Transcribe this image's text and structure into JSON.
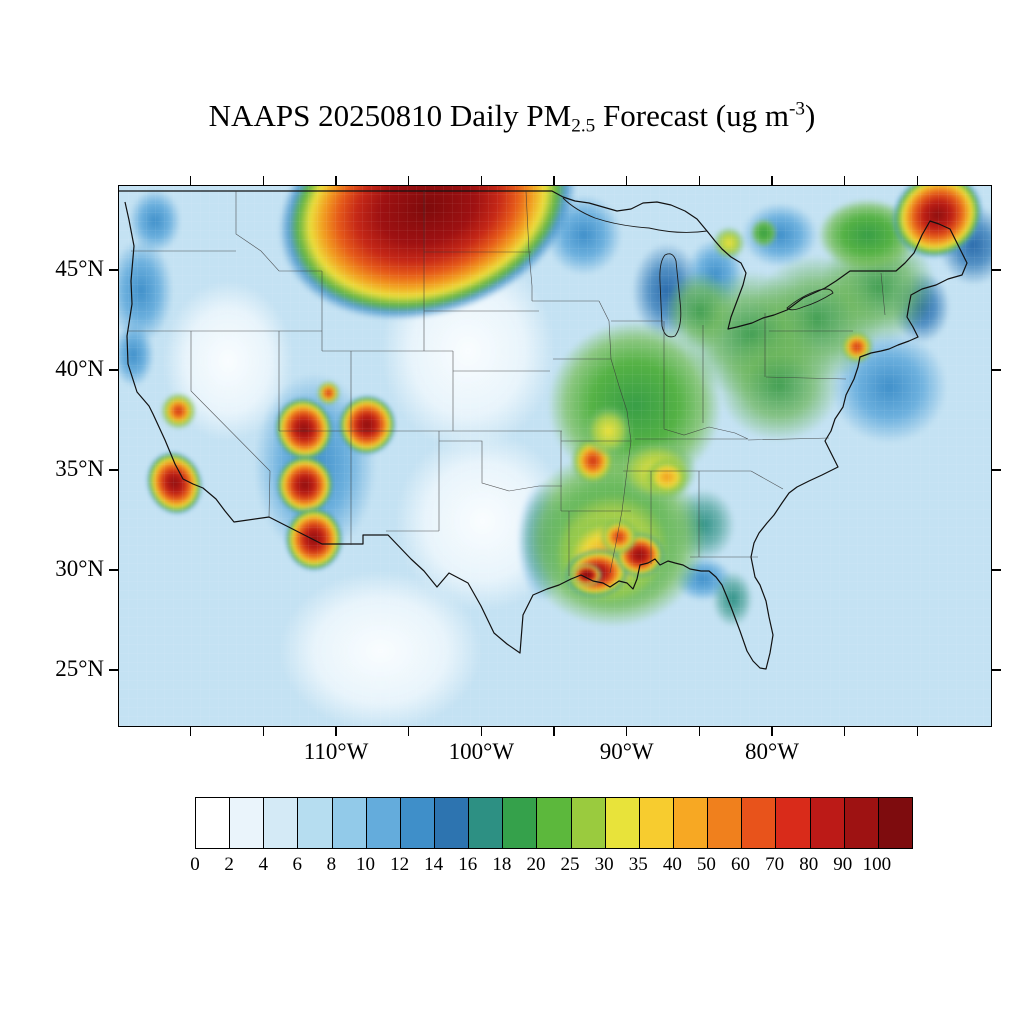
{
  "title": {
    "part1": "NAAPS 20250810 Daily PM",
    "subscript": "2.5",
    "part2": " Forecast (ug m",
    "superscript": "-3",
    "part3": ")"
  },
  "axes": {
    "y_ticks": [
      {
        "label": "45°N",
        "lat": 45
      },
      {
        "label": "40°N",
        "lat": 40
      },
      {
        "label": "35°N",
        "lat": 35
      },
      {
        "label": "30°N",
        "lat": 30
      },
      {
        "label": "25°N",
        "lat": 25
      }
    ],
    "x_ticks": [
      {
        "label": "110°W",
        "lon": 110
      },
      {
        "label": "100°W",
        "lon": 100
      },
      {
        "label": "90°W",
        "lon": 90
      },
      {
        "label": "80°W",
        "lon": 80
      }
    ],
    "minor_tick_step_deg": 5
  },
  "chart_data": {
    "type": "heatmap",
    "title": "NAAPS 20250810 Daily PM2.5 Forecast (ug m-3)",
    "model": "NAAPS",
    "date": "20250810",
    "variable": "Daily PM2.5",
    "units": "ug m-3",
    "extent": {
      "lon_west": 125,
      "lon_east": 65,
      "lat_north": 49.25,
      "lat_south": 22.25
    },
    "background_value": "2-6",
    "levels": [
      0,
      2,
      4,
      6,
      8,
      10,
      12,
      14,
      16,
      18,
      20,
      25,
      30,
      35,
      40,
      50,
      60,
      70,
      80,
      90,
      100
    ],
    "level_colors": [
      "#FFFFFF",
      "#EAF4FB",
      "#D4EAF6",
      "#B6DDF0",
      "#92CAE9",
      "#64ACDC",
      "#3F8FC9",
      "#2D74B0",
      "#2D9083",
      "#35A14B",
      "#5CB83C",
      "#9ACB3E",
      "#E8E33A",
      "#F7CC2F",
      "#F7A823",
      "#F0801D",
      "#E8531B",
      "#D92B1A",
      "#BC1A17",
      "#9E1212",
      "#7E0C0E"
    ],
    "palettes": {
      "extreme": [
        [
          0,
          "#7E0A0B"
        ],
        [
          0.32,
          "#9E1112"
        ],
        [
          0.48,
          "#C62817"
        ],
        [
          0.6,
          "#E65A19"
        ],
        [
          0.7,
          "#F29C20"
        ],
        [
          0.79,
          "#EDDF3C"
        ],
        [
          0.87,
          "#5FB347"
        ],
        [
          0.93,
          "rgba(62,142,200,0.8)"
        ],
        [
          1,
          "rgba(170,215,240,0)"
        ]
      ],
      "severe": [
        [
          0,
          "#8C0F10"
        ],
        [
          0.3,
          "#BC1D15"
        ],
        [
          0.5,
          "#E4591B"
        ],
        [
          0.65,
          "#F2A325"
        ],
        [
          0.76,
          "#EDE03C"
        ],
        [
          0.86,
          "#66B748"
        ],
        [
          0.94,
          "rgba(70,150,210,0.6)"
        ],
        [
          1,
          "rgba(170,215,240,0)"
        ]
      ],
      "high": [
        [
          0,
          "#CC2A16"
        ],
        [
          0.35,
          "#EE7C1E"
        ],
        [
          0.55,
          "#F2C92E"
        ],
        [
          0.72,
          "#A8CE45"
        ],
        [
          0.88,
          "rgba(110,180,100,0.5)"
        ],
        [
          1,
          "rgba(170,215,240,0)"
        ]
      ],
      "orange": [
        [
          0,
          "#F2991F"
        ],
        [
          0.45,
          "#EFD839"
        ],
        [
          0.7,
          "#93C94C"
        ],
        [
          1,
          "rgba(150,200,230,0)"
        ]
      ],
      "yellow": [
        [
          0,
          "#EFE23C"
        ],
        [
          0.5,
          "#AED04A"
        ],
        [
          0.8,
          "rgba(120,190,110,0.55)"
        ],
        [
          1,
          "rgba(160,205,235,0)"
        ]
      ],
      "green": [
        [
          0,
          "#389E47"
        ],
        [
          0.5,
          "#55B245"
        ],
        [
          0.78,
          "rgba(120,190,90,0.75)"
        ],
        [
          1,
          "rgba(165,210,238,0)"
        ]
      ],
      "green-soft": [
        [
          0,
          "rgba(60,155,75,0.95)"
        ],
        [
          0.55,
          "rgba(105,180,85,0.7)"
        ],
        [
          1,
          "rgba(165,210,238,0)"
        ]
      ],
      "teal": [
        [
          0,
          "#2F9186"
        ],
        [
          0.55,
          "rgba(55,150,135,0.6)"
        ],
        [
          1,
          "rgba(165,210,238,0)"
        ]
      ],
      "blue": [
        [
          0,
          "#3F8FC9"
        ],
        [
          0.55,
          "rgba(80,160,215,0.75)"
        ],
        [
          1,
          "rgba(175,215,240,0)"
        ]
      ],
      "darkblue": [
        [
          0,
          "#2B6BAB"
        ],
        [
          0.5,
          "rgba(55,125,185,0.8)"
        ],
        [
          1,
          "rgba(175,215,240,0)"
        ]
      ],
      "pale": [
        [
          0,
          "rgba(252,254,255,0.95)"
        ],
        [
          0.65,
          "rgba(244,250,254,0.75)"
        ],
        [
          1,
          "rgba(255,255,255,0)"
        ]
      ]
    },
    "features": [
      {
        "name": "great-basin-low",
        "lon": 117.5,
        "lat": 40.5,
        "rx_deg": 4.5,
        "ry_deg": 4,
        "kind": "pale",
        "peak": "0-2"
      },
      {
        "name": "plains-low",
        "lon": 101,
        "lat": 41,
        "rx_deg": 6,
        "ry_deg": 5,
        "kind": "pale",
        "peak": "0-2"
      },
      {
        "name": "texas-low",
        "lon": 100,
        "lat": 32.5,
        "rx_deg": 6,
        "ry_deg": 4.5,
        "kind": "pale",
        "peak": "0-2"
      },
      {
        "name": "mexico-low",
        "lon": 107,
        "lat": 26,
        "rx_deg": 7,
        "ry_deg": 4,
        "kind": "pale",
        "peak": "0-2"
      },
      {
        "name": "pacific-nw-blue",
        "lon": 123.5,
        "lat": 44,
        "rx_deg": 2.2,
        "ry_deg": 2.6,
        "kind": "blue",
        "peak": "8-12"
      },
      {
        "name": "wa-coast-blue",
        "lon": 122.5,
        "lat": 47.5,
        "rx_deg": 1.8,
        "ry_deg": 1.6,
        "kind": "blue",
        "peak": "8-12"
      },
      {
        "name": "norcal-coast-blue",
        "lon": 124,
        "lat": 40.8,
        "rx_deg": 1.4,
        "ry_deg": 1.6,
        "kind": "blue",
        "peak": "8-12"
      },
      {
        "name": "minnesota-blue",
        "lon": 93,
        "lat": 46.8,
        "rx_deg": 2.6,
        "ry_deg": 2,
        "kind": "blue",
        "peak": "8-12"
      },
      {
        "name": "lake-michigan-blue",
        "lon": 87.3,
        "lat": 44,
        "rx_deg": 2.4,
        "ry_deg": 2.4,
        "kind": "darkblue",
        "peak": "12-14"
      },
      {
        "name": "lake-huron-blue",
        "lon": 84,
        "lat": 44.8,
        "rx_deg": 2,
        "ry_deg": 1.8,
        "kind": "blue",
        "peak": "8-12"
      },
      {
        "name": "ne-offshore-blue",
        "lon": 72,
        "lat": 39.2,
        "rx_deg": 4,
        "ry_deg": 2.8,
        "kind": "blue",
        "peak": "8-12"
      },
      {
        "name": "ne-coast-darkblue",
        "lon": 69.8,
        "lat": 43.2,
        "rx_deg": 2,
        "ry_deg": 1.8,
        "kind": "darkblue",
        "peak": "12-14"
      },
      {
        "name": "quebec-darkblue",
        "lon": 66.2,
        "lat": 46.3,
        "rx_deg": 2.4,
        "ry_deg": 2,
        "kind": "darkblue",
        "peak": "12-14"
      },
      {
        "name": "ontario-blue",
        "lon": 79.5,
        "lat": 46.8,
        "rx_deg": 2.6,
        "ry_deg": 1.6,
        "kind": "blue",
        "peak": "8-12"
      },
      {
        "name": "south-blob-west-fringe",
        "lon": 95.8,
        "lat": 31.5,
        "rx_deg": 1.8,
        "ry_deg": 3,
        "kind": "blue",
        "peak": "8-12"
      },
      {
        "name": "georgia-fringe",
        "lon": 84.8,
        "lat": 32.3,
        "rx_deg": 2.2,
        "ry_deg": 1.8,
        "kind": "teal",
        "peak": "14-16"
      },
      {
        "name": "florida-panhandle-blue",
        "lon": 84.8,
        "lat": 29.6,
        "rx_deg": 2,
        "ry_deg": 1.1,
        "kind": "blue",
        "peak": "8-12"
      },
      {
        "name": "florida-teal",
        "lon": 82.8,
        "lat": 28.6,
        "rx_deg": 1.4,
        "ry_deg": 1.4,
        "kind": "teal",
        "peak": "14-16"
      },
      {
        "name": "four-corners-backdrop",
        "lon": 111.5,
        "lat": 35.3,
        "rx_deg": 4.2,
        "ry_deg": 4.6,
        "kind": "blue",
        "peak": "8-12"
      },
      {
        "name": "midwest-green",
        "lon": 89.5,
        "lat": 38.3,
        "rx_deg": 6,
        "ry_deg": 4.2,
        "kind": "green",
        "peak": "16-20"
      },
      {
        "name": "new-england-green",
        "lon": 72.8,
        "lat": 44.2,
        "rx_deg": 4,
        "ry_deg": 2.8,
        "kind": "green-soft",
        "peak": "16-20"
      },
      {
        "name": "ny-pa-green",
        "lon": 77,
        "lat": 42.6,
        "rx_deg": 4.6,
        "ry_deg": 3.2,
        "kind": "green-soft",
        "peak": "16-20"
      },
      {
        "name": "ohio-valley-green",
        "lon": 81.5,
        "lat": 41.8,
        "rx_deg": 4.6,
        "ry_deg": 3.2,
        "kind": "green-soft",
        "peak": "16-20"
      },
      {
        "name": "appalachia-green",
        "lon": 79.6,
        "lat": 39.3,
        "rx_deg": 4.2,
        "ry_deg": 2.8,
        "kind": "green-soft",
        "peak": "16-20"
      },
      {
        "name": "michigan-green",
        "lon": 85,
        "lat": 43,
        "rx_deg": 2.4,
        "ry_deg": 2,
        "kind": "green-soft",
        "peak": "16-20"
      },
      {
        "name": "quebec-green",
        "lon": 73.5,
        "lat": 46.8,
        "rx_deg": 3.4,
        "ry_deg": 1.8,
        "kind": "green",
        "peak": "16-20"
      },
      {
        "name": "s-ontario-spot",
        "lon": 83,
        "lat": 46.4,
        "rx_deg": 1.1,
        "ry_deg": 0.8,
        "kind": "yellow",
        "peak": "25-30"
      },
      {
        "name": "n-ontario-spot",
        "lon": 80.6,
        "lat": 46.9,
        "rx_deg": 0.9,
        "ry_deg": 0.7,
        "kind": "green",
        "peak": "16-20"
      },
      {
        "name": "south-green",
        "lon": 91,
        "lat": 31.6,
        "rx_deg": 6.4,
        "ry_deg": 4.4,
        "kind": "green",
        "peak": "16-20"
      },
      {
        "name": "south-yellow",
        "lon": 91,
        "lat": 31.2,
        "rx_deg": 4.8,
        "ry_deg": 3.3,
        "kind": "yellow",
        "peak": "25-30"
      },
      {
        "name": "south-orange",
        "lon": 91.4,
        "lat": 30.7,
        "rx_deg": 3.6,
        "ry_deg": 2.4,
        "kind": "orange",
        "peak": "35-40"
      },
      {
        "name": "louisiana-red",
        "lon": 92.1,
        "lat": 29.9,
        "rx_deg": 2.2,
        "ry_deg": 1.2,
        "rot": -8,
        "kind": "severe",
        "peak": "80-100"
      },
      {
        "name": "mississippi-red",
        "lon": 89.2,
        "lat": 30.8,
        "rx_deg": 1.7,
        "ry_deg": 1.1,
        "kind": "severe",
        "peak": "80-100"
      },
      {
        "name": "ms-delta-orange",
        "lon": 90.6,
        "lat": 31.7,
        "rx_deg": 1.3,
        "ry_deg": 0.9,
        "kind": "high",
        "peak": "50-70"
      },
      {
        "name": "louisiana-dark-core",
        "lon": 92.8,
        "lat": 29.8,
        "rx_deg": 1,
        "ry_deg": 0.55,
        "kind": "extreme",
        "peak": ">100"
      },
      {
        "name": "ozark-spot",
        "lon": 92.4,
        "lat": 35.5,
        "rx_deg": 1.5,
        "ry_deg": 1.2,
        "kind": "high",
        "peak": "50-70"
      },
      {
        "name": "missouri-yellow",
        "lon": 91.3,
        "lat": 37,
        "rx_deg": 1.7,
        "ry_deg": 1.3,
        "kind": "yellow",
        "peak": "25-30"
      },
      {
        "name": "tennessee-yellow",
        "lon": 88,
        "lat": 35,
        "rx_deg": 2.8,
        "ry_deg": 1.6,
        "kind": "yellow",
        "peak": "25-30"
      },
      {
        "name": "tennessee-orange",
        "lon": 87.3,
        "lat": 34.7,
        "rx_deg": 1.6,
        "ry_deg": 1,
        "kind": "orange",
        "peak": "35-40"
      },
      {
        "name": "utah-hotspot",
        "lon": 112.3,
        "lat": 37.1,
        "rx_deg": 2,
        "ry_deg": 1.6,
        "rot": -15,
        "kind": "severe",
        "peak": "80-100"
      },
      {
        "name": "colorado-hotspot",
        "lon": 107.9,
        "lat": 37.3,
        "rx_deg": 2,
        "ry_deg": 1.5,
        "rot": 10,
        "kind": "severe",
        "peak": "80-100"
      },
      {
        "name": "arizona-hotspot",
        "lon": 112.2,
        "lat": 34.3,
        "rx_deg": 2,
        "ry_deg": 1.5,
        "kind": "severe",
        "peak": "80-100"
      },
      {
        "name": "se-arizona-hotspot",
        "lon": 111.6,
        "lat": 31.6,
        "rx_deg": 2,
        "ry_deg": 1.6,
        "kind": "severe",
        "peak": "80-100"
      },
      {
        "name": "utah-small-spot",
        "lon": 110.6,
        "lat": 38.9,
        "rx_deg": 0.8,
        "ry_deg": 0.6,
        "kind": "high",
        "peak": "50-70"
      },
      {
        "name": "california-hotspot",
        "lon": 121.2,
        "lat": 34.4,
        "rx_deg": 1.9,
        "ry_deg": 1.6,
        "rot": -20,
        "kind": "severe",
        "peak": "80-100"
      },
      {
        "name": "sierra-spot",
        "lon": 120.9,
        "lat": 38,
        "rx_deg": 1.2,
        "ry_deg": 0.9,
        "kind": "high",
        "peak": "50-70"
      },
      {
        "name": "northern-plains-plume",
        "lon": 103.8,
        "lat": 48.2,
        "rx_deg": 10.5,
        "ry_deg": 5.4,
        "rot": -18,
        "kind": "extreme",
        "peak": ">100"
      },
      {
        "name": "maine-plume",
        "lon": 68.7,
        "lat": 47.8,
        "rx_deg": 3.2,
        "ry_deg": 2.1,
        "rot": -30,
        "kind": "severe",
        "peak": "80-100"
      },
      {
        "name": "nyc-spot",
        "lon": 74.2,
        "lat": 41.2,
        "rx_deg": 1.1,
        "ry_deg": 0.8,
        "kind": "high",
        "peak": "50-70"
      }
    ]
  }
}
